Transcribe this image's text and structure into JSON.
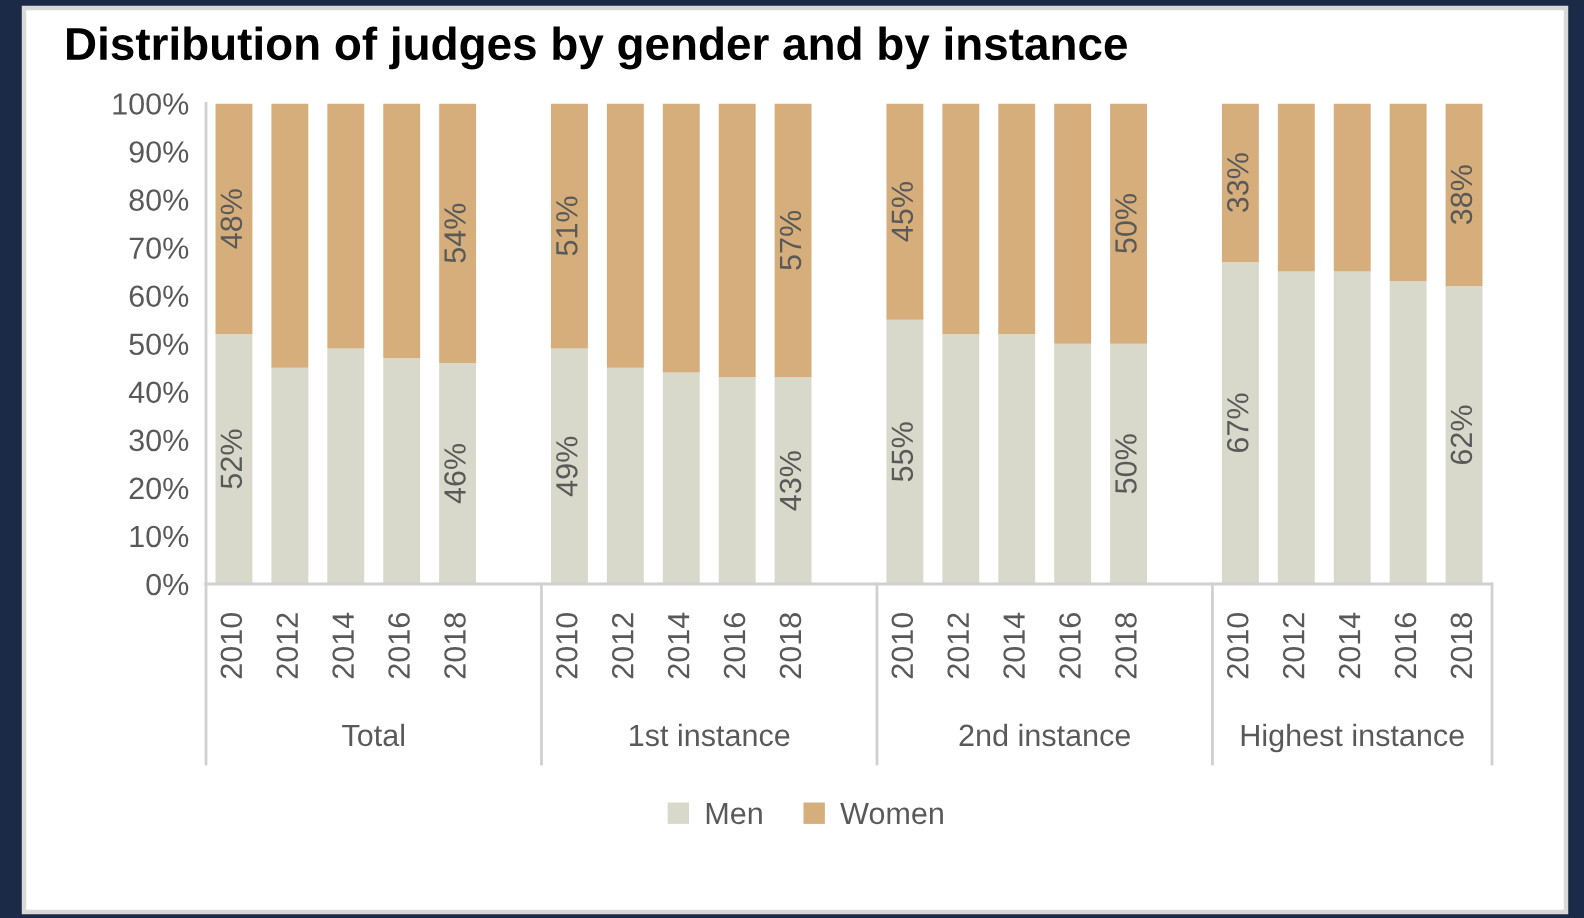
{
  "chart_data": {
    "type": "bar",
    "stacked": true,
    "title": "Distribution of judges by gender and by instance",
    "categories": [
      "2010",
      "2012",
      "2014",
      "2016",
      "2018",
      null,
      "2010",
      "2012",
      "2014",
      "2016",
      "2018",
      null,
      "2010",
      "2012",
      "2014",
      "2016",
      "2018",
      null,
      "2010",
      "2012",
      "2014",
      "2016",
      "2018"
    ],
    "series": [
      {
        "name": "Men",
        "color": "#d8d9cb",
        "values": [
          52,
          45,
          49,
          47,
          46,
          null,
          49,
          45,
          44,
          43,
          43,
          null,
          55,
          52,
          52,
          50,
          50,
          null,
          67,
          65,
          65,
          63,
          62
        ],
        "value_labels": [
          "52%",
          null,
          null,
          null,
          "46%",
          null,
          "49%",
          null,
          null,
          null,
          "43%",
          null,
          "55%",
          null,
          null,
          null,
          "50%",
          null,
          "67%",
          null,
          null,
          null,
          "62%"
        ]
      },
      {
        "name": "Women",
        "color": "#d5ae7b",
        "values": [
          48,
          55,
          51,
          53,
          54,
          null,
          51,
          55,
          56,
          57,
          57,
          null,
          45,
          48,
          48,
          50,
          50,
          null,
          33,
          35,
          35,
          37,
          38
        ],
        "value_labels": [
          "48%",
          null,
          null,
          null,
          "54%",
          null,
          "51%",
          null,
          null,
          null,
          "57%",
          null,
          "45%",
          null,
          null,
          null,
          "50%",
          null,
          "33%",
          null,
          null,
          null,
          "38%"
        ]
      }
    ],
    "ylim": [
      0,
      100
    ],
    "yticks": [
      {
        "value": 0,
        "label": "0%"
      },
      {
        "value": 10,
        "label": "10%"
      },
      {
        "value": 20,
        "label": "20%"
      },
      {
        "value": 30,
        "label": "30%"
      },
      {
        "value": 40,
        "label": "40%"
      },
      {
        "value": 50,
        "label": "50%"
      },
      {
        "value": 60,
        "label": "60%"
      },
      {
        "value": 70,
        "label": "70%"
      },
      {
        "value": 80,
        "label": "80%"
      },
      {
        "value": 90,
        "label": "90%"
      },
      {
        "value": 100,
        "label": "100%"
      }
    ],
    "annotations": [
      "Total",
      "1st instance",
      "2nd instance",
      "Highest instance"
    ],
    "legend": "bottom",
    "grid": false
  }
}
